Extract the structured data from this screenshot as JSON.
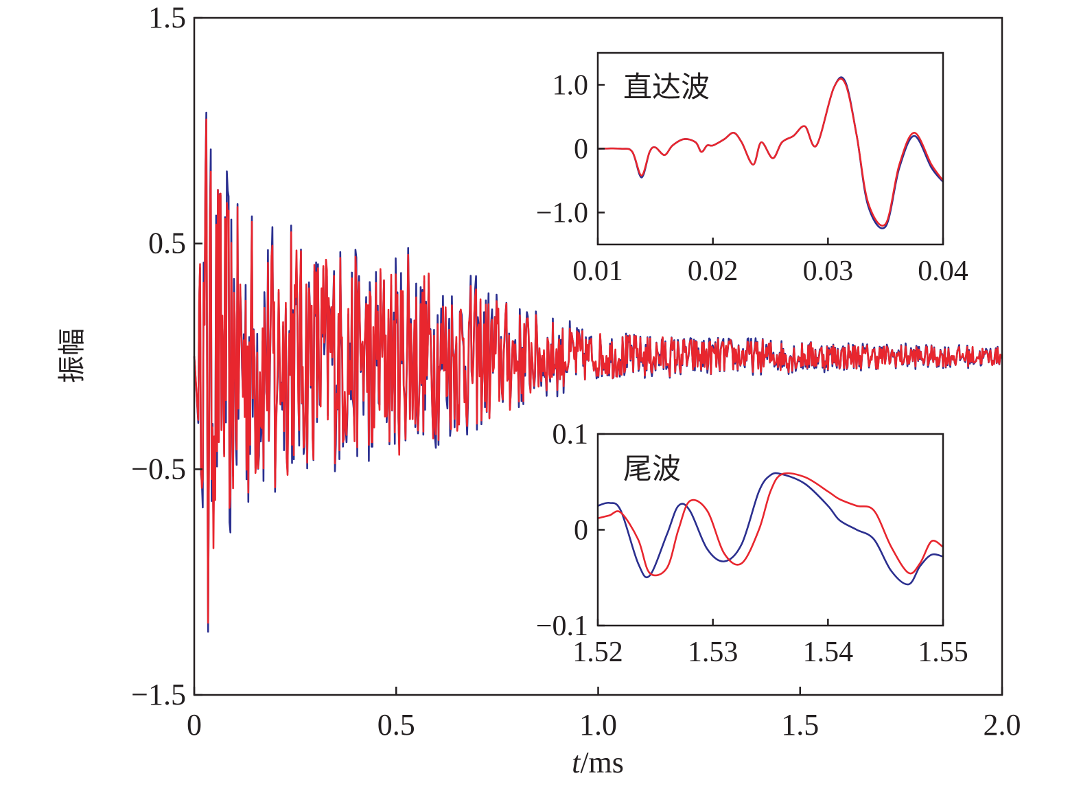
{
  "colors": {
    "blue": "#2b2f8f",
    "red": "#e8262e"
  },
  "chart_data": [
    {
      "type": "line",
      "role": "main",
      "xlabel_italic": "t",
      "xlabel_unit": "/ms",
      "ylabel": "振幅",
      "xlim": [
        0,
        2.0
      ],
      "ylim": [
        -1.5,
        1.5
      ],
      "x_ticks": [
        "0",
        "0.5",
        "1.0",
        "1.5",
        "2.0"
      ],
      "y_ticks": [
        "1.5",
        "0.5",
        "−0.5",
        "−1.5"
      ],
      "series": [
        {
          "color": "#2b2f8f",
          "envelope": [
            [
              0.0,
              0.0
            ],
            [
              0.03,
              1.1
            ],
            [
              0.08,
              0.85
            ],
            [
              0.2,
              0.6
            ],
            [
              0.45,
              0.5
            ],
            [
              0.7,
              0.38
            ],
            [
              0.85,
              0.22
            ],
            [
              1.0,
              0.12
            ],
            [
              1.5,
              0.08
            ],
            [
              2.0,
              0.05
            ]
          ],
          "peaks": [
            [
              0.03,
              1.08
            ],
            [
              0.035,
              -1.22
            ],
            [
              0.08,
              0.82
            ],
            [
              0.09,
              -0.78
            ],
            [
              0.2,
              -0.6
            ],
            [
              0.24,
              0.58
            ],
            [
              0.44,
              -0.4
            ],
            [
              0.53,
              0.48
            ]
          ]
        },
        {
          "color": "#e8262e",
          "envelope": [
            [
              0.0,
              0.0
            ],
            [
              0.03,
              1.05
            ],
            [
              0.08,
              0.8
            ],
            [
              0.2,
              0.58
            ],
            [
              0.45,
              0.48
            ],
            [
              0.7,
              0.36
            ],
            [
              0.85,
              0.2
            ],
            [
              1.0,
              0.11
            ],
            [
              1.5,
              0.07
            ],
            [
              2.0,
              0.045
            ]
          ],
          "peaks": [
            [
              0.03,
              1.05
            ],
            [
              0.035,
              -1.18
            ],
            [
              0.08,
              0.68
            ],
            [
              0.09,
              -0.62
            ],
            [
              0.2,
              -0.58
            ],
            [
              0.24,
              0.55
            ],
            [
              0.44,
              -0.38
            ],
            [
              0.53,
              0.45
            ]
          ]
        }
      ]
    },
    {
      "type": "line",
      "role": "inset-direct",
      "title": "直达波",
      "xlim": [
        0.01,
        0.04
      ],
      "ylim": [
        -1.5,
        1.5
      ],
      "x_ticks": [
        "0.01",
        "0.02",
        "0.03",
        "0.04"
      ],
      "y_ticks": [
        "1.0",
        "0",
        "−1.0"
      ],
      "x": [
        0.01,
        0.012,
        0.013,
        0.0138,
        0.0145,
        0.015,
        0.0158,
        0.0165,
        0.0175,
        0.0185,
        0.019,
        0.0195,
        0.02,
        0.021,
        0.0218,
        0.0225,
        0.0235,
        0.0242,
        0.0252,
        0.026,
        0.027,
        0.028,
        0.029,
        0.0305,
        0.0315,
        0.0325,
        0.0335,
        0.035,
        0.0362,
        0.0375,
        0.039,
        0.04
      ],
      "series": [
        {
          "color": "#2b2f8f",
          "values": [
            0.0,
            0.0,
            -0.05,
            -0.45,
            -0.05,
            0.02,
            -0.1,
            0.05,
            0.15,
            0.1,
            -0.05,
            0.05,
            0.05,
            0.15,
            0.25,
            0.1,
            -0.25,
            0.1,
            -0.15,
            0.1,
            0.2,
            0.35,
            0.05,
            0.95,
            1.05,
            0.2,
            -0.9,
            -1.22,
            -0.3,
            0.2,
            -0.3,
            -0.52
          ]
        },
        {
          "color": "#e8262e",
          "values": [
            0.0,
            0.0,
            -0.05,
            -0.42,
            -0.05,
            0.02,
            -0.1,
            0.05,
            0.15,
            0.1,
            -0.05,
            0.05,
            0.05,
            0.15,
            0.25,
            0.1,
            -0.25,
            0.1,
            -0.15,
            0.1,
            0.2,
            0.35,
            0.05,
            0.95,
            1.02,
            0.2,
            -0.85,
            -1.18,
            -0.25,
            0.25,
            -0.25,
            -0.5
          ]
        }
      ]
    },
    {
      "type": "line",
      "role": "inset-coda",
      "title": "尾波",
      "xlim": [
        1.52,
        1.55
      ],
      "ylim": [
        -0.1,
        0.1
      ],
      "x_ticks": [
        "1.52",
        "1.53",
        "1.54",
        "1.55"
      ],
      "y_ticks": [
        "0.1",
        "0",
        "−0.1"
      ],
      "x": [
        1.52,
        1.521,
        1.522,
        1.5235,
        1.5245,
        1.526,
        1.527,
        1.528,
        1.5295,
        1.531,
        1.5325,
        1.534,
        1.535,
        1.536,
        1.538,
        1.54,
        1.541,
        1.5425,
        1.544,
        1.5455,
        1.547,
        1.548,
        1.549,
        1.55
      ],
      "series": [
        {
          "color": "#2b2f8f",
          "values": [
            0.025,
            0.028,
            0.02,
            -0.035,
            -0.048,
            -0.005,
            0.025,
            0.02,
            -0.02,
            -0.033,
            -0.015,
            0.04,
            0.057,
            0.058,
            0.048,
            0.025,
            0.01,
            0.0,
            -0.01,
            -0.043,
            -0.057,
            -0.038,
            -0.026,
            -0.028
          ]
        },
        {
          "color": "#e8262e",
          "values": [
            0.012,
            0.015,
            0.018,
            -0.01,
            -0.045,
            -0.04,
            0.0,
            0.03,
            0.02,
            -0.025,
            -0.035,
            0.0,
            0.04,
            0.058,
            0.055,
            0.04,
            0.032,
            0.025,
            0.02,
            -0.018,
            -0.045,
            -0.035,
            -0.012,
            -0.018
          ]
        }
      ]
    }
  ]
}
